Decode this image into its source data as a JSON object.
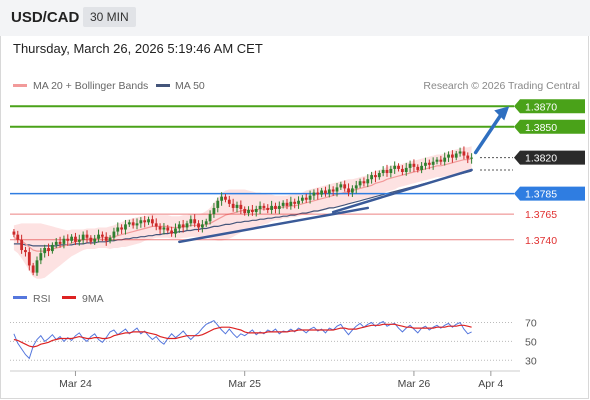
{
  "header": {
    "symbol": "USD/CAD",
    "interval": "30 MIN",
    "timestamp": "Thursday, March 26, 2026 5:19:46 AM CET"
  },
  "legend": {
    "ma20": "MA 20 + Bollinger Bands",
    "ma50": "MA 50",
    "credit": "Research © 2026 Trading Central",
    "rsi": "RSI",
    "rsi_ma": "9MA"
  },
  "colors": {
    "resistance": "#4aa219",
    "support_major": "#2f7de1",
    "support_minor": "#e03030",
    "price_tag": "#2b2b2b",
    "band_fill": "#fde2e2",
    "ma20": "#f29a9a",
    "ma50": "#44557a",
    "trend": "#3a5a98",
    "arrow": "#2f6fc0",
    "candle_up": "#2f7f2f",
    "candle_down": "#cc2a2a",
    "rsi": "#5577dd",
    "rsi_ma": "#dd2222"
  },
  "chart_data": {
    "type": "candlestick",
    "ylim": [
      1.3695,
      1.388
    ],
    "levels": [
      {
        "label": "1.3870",
        "value": 1.387,
        "kind": "resistance"
      },
      {
        "label": "1.3850",
        "value": 1.385,
        "kind": "resistance"
      },
      {
        "label": "1.3820",
        "value": 1.382,
        "kind": "current"
      },
      {
        "label": "1.3785",
        "value": 1.3785,
        "kind": "support_major"
      },
      {
        "label": "1.3765",
        "value": 1.3765,
        "kind": "support_minor"
      },
      {
        "label": "1.3740",
        "value": 1.374,
        "kind": "support_minor"
      }
    ],
    "close": [
      1.3745,
      1.374,
      1.373,
      1.3728,
      1.3715,
      1.3708,
      1.372,
      1.3727,
      1.3732,
      1.3729,
      1.3735,
      1.3738,
      1.3736,
      1.3741,
      1.3739,
      1.3743,
      1.3738,
      1.374,
      1.3745,
      1.3742,
      1.3738,
      1.3741,
      1.3745,
      1.3743,
      1.3739,
      1.3742,
      1.3748,
      1.3752,
      1.375,
      1.3755,
      1.3757,
      1.3754,
      1.3756,
      1.3759,
      1.3757,
      1.376,
      1.3756,
      1.3753,
      1.375,
      1.3752,
      1.3749,
      1.3746,
      1.3751,
      1.3755,
      1.3752,
      1.3756,
      1.376,
      1.3756,
      1.3752,
      1.3755,
      1.3758,
      1.3765,
      1.3771,
      1.3778,
      1.3782,
      1.3779,
      1.3775,
      1.3771,
      1.3774,
      1.377,
      1.3766,
      1.3769,
      1.3767,
      1.377,
      1.3773,
      1.3771,
      1.3769,
      1.3773,
      1.377,
      1.3773,
      1.3776,
      1.3773,
      1.3777,
      1.3775,
      1.3778,
      1.3781,
      1.3779,
      1.3783,
      1.3786,
      1.3784,
      1.3788,
      1.3785,
      1.3789,
      1.3787,
      1.3791,
      1.3794,
      1.379,
      1.3786,
      1.379,
      1.3793,
      1.3797,
      1.3795,
      1.3799,
      1.3803,
      1.3801,
      1.3805,
      1.3808,
      1.3805,
      1.3809,
      1.3812,
      1.3809,
      1.3806,
      1.381,
      1.3814,
      1.3811,
      1.3808,
      1.3812,
      1.3815,
      1.3813,
      1.3816,
      1.3818,
      1.3816,
      1.382,
      1.3823,
      1.382,
      1.3824,
      1.3826,
      1.3822,
      1.3819,
      1.382
    ],
    "ma20": [
      1.3742,
      1.3741,
      1.3739,
      1.3736,
      1.3733,
      1.373,
      1.3729,
      1.3729,
      1.3729,
      1.373,
      1.3731,
      1.3732,
      1.3733,
      1.3734,
      1.3735,
      1.3737,
      1.3738,
      1.3739,
      1.374,
      1.3741,
      1.3741,
      1.3741,
      1.3742,
      1.3742,
      1.3742,
      1.3742,
      1.3743,
      1.3744,
      1.3745,
      1.3746,
      1.3747,
      1.3748,
      1.3749,
      1.375,
      1.3751,
      1.3752,
      1.3753,
      1.3753,
      1.3753,
      1.3753,
      1.3753,
      1.3752,
      1.3752,
      1.3752,
      1.3753,
      1.3753,
      1.3754,
      1.3754,
      1.3754,
      1.3754,
      1.3755,
      1.3756,
      1.3758,
      1.376,
      1.3762,
      1.3764,
      1.3765,
      1.3766,
      1.3767,
      1.3768,
      1.3769,
      1.3769,
      1.3769,
      1.3769,
      1.377,
      1.377,
      1.377,
      1.3771,
      1.3771,
      1.3771,
      1.3772,
      1.3772,
      1.3773,
      1.3773,
      1.3774,
      1.3775,
      1.3776,
      1.3777,
      1.3778,
      1.3779,
      1.378,
      1.3781,
      1.3782,
      1.3783,
      1.3784,
      1.3785,
      1.3786,
      1.3787,
      1.3788,
      1.3789,
      1.379,
      1.3791,
      1.3792,
      1.3793,
      1.3795,
      1.3796,
      1.3797,
      1.3799,
      1.38,
      1.3801,
      1.3802,
      1.3803,
      1.3804,
      1.3805,
      1.3806,
      1.3807,
      1.3808,
      1.3809,
      1.381,
      1.3811,
      1.3812,
      1.3812,
      1.3813,
      1.3814,
      1.3815,
      1.3816,
      1.3817,
      1.3818,
      1.3818,
      1.3819
    ],
    "ma50": [
      1.3736,
      1.3736,
      1.3736,
      1.3735,
      1.3735,
      1.3734,
      1.3734,
      1.3734,
      1.3734,
      1.3734,
      1.3734,
      1.3734,
      1.3735,
      1.3735,
      1.3735,
      1.3735,
      1.3736,
      1.3736,
      1.3736,
      1.3737,
      1.3737,
      1.3737,
      1.3738,
      1.3738,
      1.3738,
      1.3739,
      1.3739,
      1.374,
      1.374,
      1.3741,
      1.3741,
      1.3742,
      1.3742,
      1.3743,
      1.3743,
      1.3744,
      1.3744,
      1.3745,
      1.3745,
      1.3746,
      1.3746,
      1.3747,
      1.3747,
      1.3748,
      1.3748,
      1.3749,
      1.3749,
      1.375,
      1.375,
      1.3751,
      1.3751,
      1.3752,
      1.3753,
      1.3753,
      1.3754,
      1.3755,
      1.3755,
      1.3756,
      1.3757,
      1.3757,
      1.3758,
      1.3758,
      1.3759,
      1.3759,
      1.376,
      1.376,
      1.3761,
      1.3761,
      1.3762,
      1.3762,
      1.3763,
      1.3763,
      1.3764,
      1.3764,
      1.3765,
      1.3766,
      1.3766,
      1.3767,
      1.3768,
      1.3768,
      1.3769,
      1.377,
      1.3771,
      1.3771,
      1.3772,
      1.3773,
      1.3774,
      1.3775,
      1.3776,
      1.3777,
      1.3778,
      1.3779,
      1.378,
      1.3781,
      1.3782,
      1.3783,
      1.3784,
      1.3785,
      1.3786,
      1.3787,
      1.3788,
      1.3789,
      1.379,
      1.3791,
      1.3792,
      1.3793,
      1.3794,
      1.3795,
      1.3796,
      1.3797,
      1.3798,
      1.3799,
      1.38,
      1.3801,
      1.3802,
      1.3803,
      1.3804,
      1.3805,
      1.3806,
      1.3807
    ],
    "band_width": [
      0.0012,
      0.0014,
      0.0017,
      0.002,
      0.0023,
      0.0026,
      0.0027,
      0.0027,
      0.0026,
      0.0024,
      0.0022,
      0.002,
      0.0018,
      0.0016,
      0.0014,
      0.0013,
      0.0012,
      0.0011,
      0.001,
      0.001,
      0.001,
      0.001,
      0.001,
      0.001,
      0.001,
      0.0011,
      0.0011,
      0.0012,
      0.0012,
      0.0013,
      0.0013,
      0.0013,
      0.0013,
      0.0013,
      0.0012,
      0.0012,
      0.0012,
      0.0011,
      0.0011,
      0.0011,
      0.0011,
      0.0011,
      0.0011,
      0.0011,
      0.0011,
      0.0011,
      0.0011,
      0.0011,
      0.0011,
      0.0012,
      0.0013,
      0.0015,
      0.0018,
      0.0021,
      0.0023,
      0.0024,
      0.0024,
      0.0023,
      0.0022,
      0.0021,
      0.002,
      0.0019,
      0.0018,
      0.0017,
      0.0016,
      0.0015,
      0.0014,
      0.0013,
      0.0012,
      0.0012,
      0.0011,
      0.0011,
      0.0011,
      0.0011,
      0.0011,
      0.0011,
      0.0012,
      0.0012,
      0.0012,
      0.0012,
      0.0012,
      0.0012,
      0.0012,
      0.0012,
      0.0012,
      0.0012,
      0.0012,
      0.0012,
      0.0011,
      0.0011,
      0.0011,
      0.0011,
      0.0011,
      0.0012,
      0.0012,
      0.0012,
      0.0012,
      0.0012,
      0.0012,
      0.0012,
      0.0011,
      0.0011,
      0.0011,
      0.0011,
      0.0011,
      0.0011,
      0.0011,
      0.0011,
      0.0011,
      0.0011,
      0.0011,
      0.0011,
      0.0011,
      0.0012,
      0.0012,
      0.0012,
      0.0012,
      0.0012,
      0.0012,
      0.0012
    ],
    "trendlines": [
      {
        "from": [
          43,
          1.3738
        ],
        "to": [
          92,
          1.3771
        ]
      },
      {
        "from": [
          83,
          1.3767
        ],
        "to": [
          119,
          1.3808
        ]
      }
    ],
    "forecast": {
      "from": [
        119,
        1.3822
      ],
      "to": [
        128,
        1.3867
      ]
    },
    "rsi": {
      "ylim": [
        25,
        80
      ],
      "ticks": [
        "70",
        "50",
        "30"
      ],
      "tick_values": [
        70,
        50,
        30
      ],
      "rsi": [
        58,
        48,
        42,
        36,
        32,
        45,
        52,
        56,
        50,
        53,
        57,
        52,
        55,
        50,
        54,
        51,
        56,
        59,
        53,
        50,
        55,
        58,
        52,
        49,
        54,
        60,
        62,
        57,
        60,
        63,
        58,
        61,
        64,
        58,
        61,
        56,
        52,
        55,
        50,
        47,
        53,
        58,
        54,
        57,
        61,
        56,
        52,
        56,
        59,
        64,
        68,
        70,
        72,
        67,
        62,
        58,
        63,
        58,
        54,
        58,
        56,
        59,
        62,
        57,
        60,
        58,
        62,
        60,
        63,
        58,
        61,
        60,
        63,
        60,
        64,
        62,
        59,
        63,
        65,
        61,
        63,
        59,
        64,
        62,
        66,
        68,
        62,
        57,
        62,
        66,
        69,
        65,
        68,
        70,
        66,
        69,
        71,
        66,
        68,
        69,
        64,
        60,
        64,
        67,
        63,
        59,
        64,
        66,
        62,
        65,
        67,
        64,
        67,
        69,
        65,
        68,
        70,
        63,
        58,
        60
      ],
      "ma": [
        52,
        51,
        49,
        47,
        45,
        44,
        45,
        47,
        48,
        49,
        51,
        52,
        53,
        53,
        53,
        53,
        54,
        55,
        54,
        53,
        53,
        54,
        54,
        53,
        53,
        54,
        56,
        57,
        58,
        59,
        59,
        60,
        60,
        60,
        60,
        59,
        58,
        57,
        55,
        54,
        53,
        53,
        53,
        54,
        55,
        56,
        56,
        56,
        56,
        57,
        59,
        61,
        63,
        64,
        65,
        65,
        65,
        64,
        63,
        62,
        60,
        59,
        59,
        59,
        59,
        59,
        60,
        60,
        60,
        60,
        60,
        60,
        61,
        61,
        62,
        62,
        62,
        62,
        62,
        62,
        62,
        62,
        62,
        62,
        63,
        64,
        64,
        63,
        63,
        63,
        64,
        65,
        66,
        67,
        67,
        67,
        68,
        68,
        68,
        68,
        67,
        66,
        65,
        65,
        64,
        64,
        64,
        64,
        64,
        64,
        65,
        65,
        65,
        66,
        66,
        66,
        67,
        67,
        66,
        65
      ]
    },
    "x_ticks": [
      {
        "label": "Mar 24",
        "index": 16
      },
      {
        "label": "Mar 25",
        "index": 60
      },
      {
        "label": "Mar 26",
        "index": 104
      },
      {
        "label": "Apr 4",
        "index": 124
      }
    ]
  }
}
